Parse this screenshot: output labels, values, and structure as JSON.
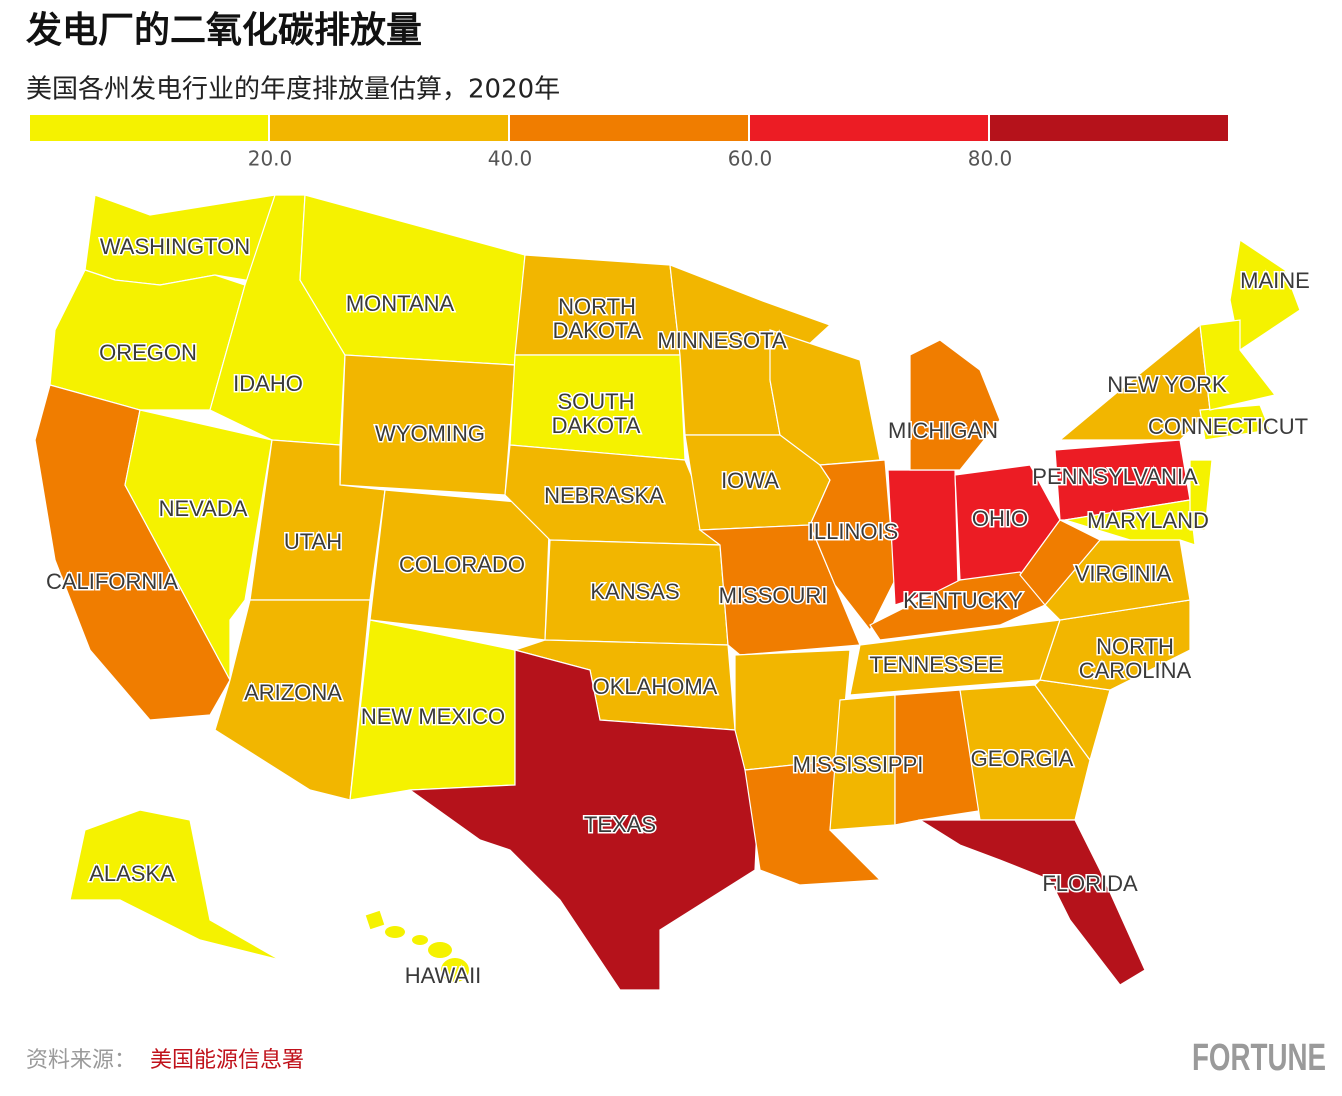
{
  "header": {
    "title": "发电厂的二氧化碳排放量",
    "subtitle": "美国各州发电行业的年度排放量估算，2020年"
  },
  "legend": {
    "colors": [
      "#f5f200",
      "#f2b600",
      "#f07d00",
      "#ec1c24",
      "#b5121b"
    ],
    "lim": [
      0,
      100
    ],
    "ticks": [
      {
        "value": 20,
        "label": "20.0"
      },
      {
        "value": 40,
        "label": "40.0"
      },
      {
        "value": 60,
        "label": "60.0"
      },
      {
        "value": 80,
        "label": "80.0"
      }
    ]
  },
  "states": [
    {
      "name": "WASHINGTON",
      "color": "#f5f200"
    },
    {
      "name": "OREGON",
      "color": "#f5f200"
    },
    {
      "name": "CALIFORNIA",
      "color": "#f07d00"
    },
    {
      "name": "NEVADA",
      "color": "#f5f200"
    },
    {
      "name": "IDAHO",
      "color": "#f5f200"
    },
    {
      "name": "MONTANA",
      "color": "#f5f200"
    },
    {
      "name": "WYOMING",
      "color": "#f2b600"
    },
    {
      "name": "UTAH",
      "color": "#f2b600"
    },
    {
      "name": "ARIZONA",
      "color": "#f2b600"
    },
    {
      "name": "COLORADO",
      "color": "#f2b600"
    },
    {
      "name": "NEW MEXICO",
      "color": "#f5f200"
    },
    {
      "name": "NORTH DAKOTA",
      "color": "#f2b600"
    },
    {
      "name": "SOUTH DAKOTA",
      "color": "#f5f200"
    },
    {
      "name": "NEBRASKA",
      "color": "#f2b600"
    },
    {
      "name": "KANSAS",
      "color": "#f2b600"
    },
    {
      "name": "OKLAHOMA",
      "color": "#f2b600"
    },
    {
      "name": "TEXAS",
      "color": "#b5121b"
    },
    {
      "name": "MINNESOTA",
      "color": "#f2b600"
    },
    {
      "name": "IOWA",
      "color": "#f2b600"
    },
    {
      "name": "MISSOURI",
      "color": "#f07d00"
    },
    {
      "name": null,
      "color": "#f2b600"
    },
    {
      "name": null,
      "color": "#f07d00"
    },
    {
      "name": null,
      "color": "#f2b600"
    },
    {
      "name": "ILLINOIS",
      "color": "#f07d00"
    },
    {
      "name": null,
      "color": "#ec1c24"
    },
    {
      "name": "MICHIGAN",
      "color": "#f07d00"
    },
    {
      "name": "OHIO",
      "color": "#ec1c24"
    },
    {
      "name": "KENTUCKY",
      "color": "#f07d00"
    },
    {
      "name": "TENNESSEE",
      "color": "#f2b600"
    },
    {
      "name": "MISSISSIPPI",
      "color": "#f2b600"
    },
    {
      "name": null,
      "color": "#f07d00"
    },
    {
      "name": "GEORGIA",
      "color": "#f2b600"
    },
    {
      "name": "FLORIDA",
      "color": "#b5121b"
    },
    {
      "name": null,
      "color": "#f2b600"
    },
    {
      "name": "NORTH CAROLINA",
      "color": "#f2b600"
    },
    {
      "name": "VIRGINIA",
      "color": "#f2b600"
    },
    {
      "name": null,
      "color": "#f07d00"
    },
    {
      "name": "PENNSYLVANIA",
      "color": "#ec1c24"
    },
    {
      "name": "NEW YORK",
      "color": "#f2b600"
    },
    {
      "name": "MARYLAND",
      "color": "#f5f200"
    },
    {
      "name": null,
      "color": "#f5f200"
    },
    {
      "name": "CONNECTICUT",
      "color": "#f5f200"
    },
    {
      "name": "MAINE",
      "color": "#f5f200"
    },
    {
      "name": null,
      "color": "#f5f200"
    },
    {
      "name": "ALASKA",
      "color": "#f5f200"
    },
    {
      "name": "HAWAII",
      "color": "#f5f200"
    }
  ],
  "footer": {
    "source_label": "资料来源：",
    "source": "美国能源信息署",
    "brand": "FORTUNE"
  }
}
